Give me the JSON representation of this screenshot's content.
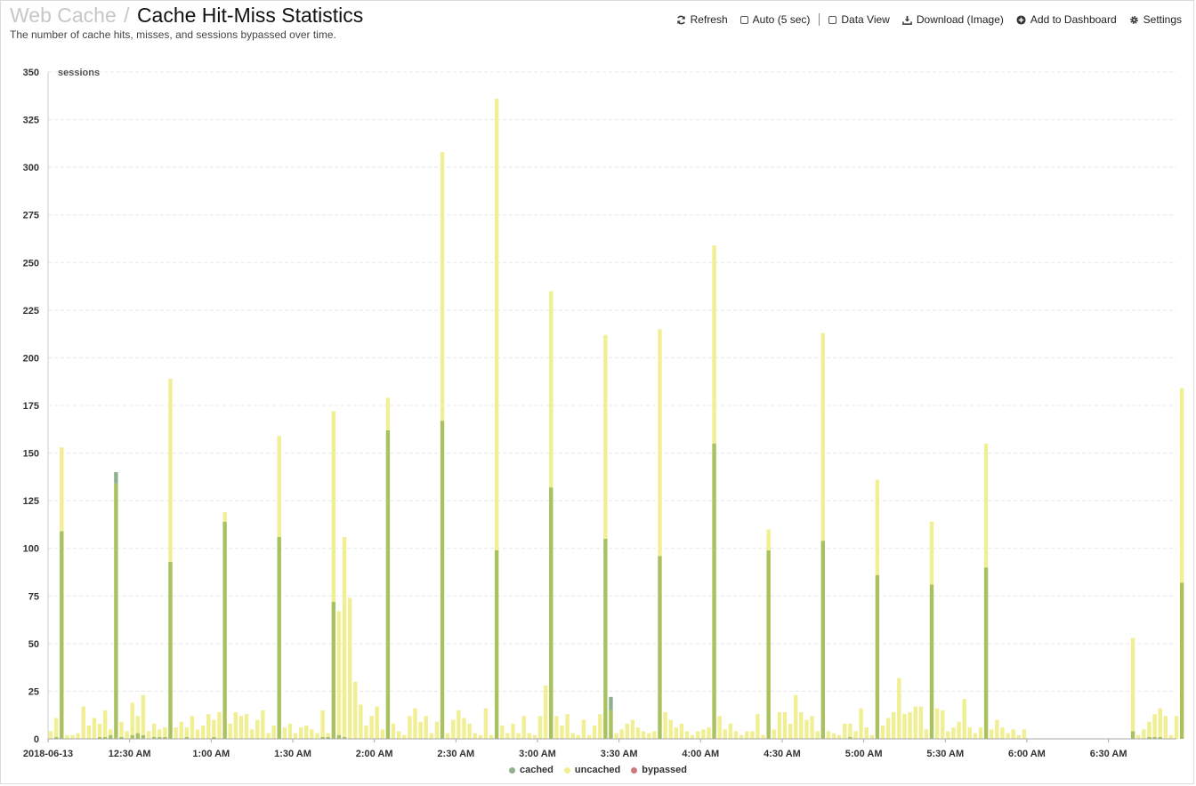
{
  "header": {
    "breadcrumb": "Web Cache",
    "separator": "/",
    "title": "Cache Hit-Miss Statistics",
    "subtitle": "The number of cache hits, misses, and sessions bypassed over time."
  },
  "toolbar": {
    "refresh": "Refresh",
    "auto": "Auto (5 sec)",
    "data_view": "Data View",
    "download": "Download (Image)",
    "add_dashboard": "Add to Dashboard",
    "settings": "Settings"
  },
  "colors": {
    "cached": "#a9c15e",
    "uncached": "#f1ef93",
    "bypassed": "#c97a7a",
    "grid": "#e8e8e8",
    "spike_highlight": "#8fb08f"
  },
  "chart_data": {
    "type": "bar",
    "stacked": true,
    "ylabel": "sessions",
    "ylim": [
      0,
      350
    ],
    "yticks": [
      0,
      25,
      50,
      75,
      100,
      125,
      150,
      175,
      200,
      225,
      250,
      275,
      300,
      325,
      350
    ],
    "grid": true,
    "legend_position": "bottom-center",
    "x_range": [
      "2018-06-13 00:00",
      "2018-06-13 06:53"
    ],
    "x_tick_labels": [
      "2018-06-13",
      "12:30 AM",
      "1:00 AM",
      "1:30 AM",
      "2:00 AM",
      "2:30 AM",
      "3:00 AM",
      "3:30 AM",
      "4:00 AM",
      "4:30 AM",
      "5:00 AM",
      "5:30 AM",
      "6:00 AM",
      "6:30 AM"
    ],
    "interval_minutes": 2,
    "series_names": [
      "cached",
      "uncached",
      "bypassed"
    ],
    "bars": [
      [
        "00:00",
        0,
        4
      ],
      [
        "00:02",
        1,
        10
      ],
      [
        "00:04",
        109,
        44
      ],
      [
        "00:06",
        0,
        2
      ],
      [
        "00:08",
        0,
        2
      ],
      [
        "00:10",
        0,
        3
      ],
      [
        "00:12",
        0,
        17
      ],
      [
        "00:14",
        0,
        7
      ],
      [
        "00:16",
        0,
        11
      ],
      [
        "00:18",
        1,
        7
      ],
      [
        "00:20",
        1,
        14
      ],
      [
        "00:22",
        2,
        3
      ],
      [
        "00:24",
        134,
        6
      ],
      [
        "00:26",
        1,
        8
      ],
      [
        "00:28",
        0,
        4
      ],
      [
        "00:30",
        2,
        17
      ],
      [
        "00:32",
        3,
        9
      ],
      [
        "00:34",
        2,
        21
      ],
      [
        "00:36",
        0,
        4
      ],
      [
        "00:38",
        1,
        7
      ],
      [
        "00:40",
        1,
        4
      ],
      [
        "00:42",
        1,
        5
      ],
      [
        "00:44",
        93,
        96
      ],
      [
        "00:46",
        0,
        6
      ],
      [
        "00:48",
        0,
        9
      ],
      [
        "00:50",
        1,
        5
      ],
      [
        "00:52",
        0,
        12
      ],
      [
        "00:54",
        0,
        5
      ],
      [
        "00:56",
        0,
        7
      ],
      [
        "00:58",
        0,
        13
      ],
      [
        "01:00",
        1,
        9
      ],
      [
        "01:02",
        0,
        14
      ],
      [
        "01:04",
        114,
        5
      ],
      [
        "01:06",
        0,
        8
      ],
      [
        "01:08",
        0,
        14
      ],
      [
        "01:10",
        0,
        12
      ],
      [
        "01:12",
        0,
        13
      ],
      [
        "01:14",
        0,
        5
      ],
      [
        "01:16",
        0,
        10
      ],
      [
        "01:18",
        0,
        15
      ],
      [
        "01:20",
        0,
        3
      ],
      [
        "01:22",
        0,
        7
      ],
      [
        "01:24",
        106,
        53
      ],
      [
        "01:26",
        0,
        6
      ],
      [
        "01:28",
        0,
        8
      ],
      [
        "01:30",
        0,
        3
      ],
      [
        "01:32",
        0,
        6
      ],
      [
        "01:34",
        0,
        7
      ],
      [
        "01:36",
        0,
        5
      ],
      [
        "01:38",
        0,
        3
      ],
      [
        "01:40",
        1,
        14
      ],
      [
        "01:42",
        1,
        2
      ],
      [
        "01:44",
        72,
        100
      ],
      [
        "01:46",
        2,
        65
      ],
      [
        "01:48",
        1,
        105
      ],
      [
        "01:50",
        0,
        74
      ],
      [
        "01:52",
        0,
        30
      ],
      [
        "01:54",
        0,
        18
      ],
      [
        "01:56",
        0,
        7
      ],
      [
        "01:58",
        0,
        12
      ],
      [
        "02:00",
        0,
        17
      ],
      [
        "02:02",
        0,
        5
      ],
      [
        "02:04",
        162,
        17
      ],
      [
        "02:06",
        0,
        8
      ],
      [
        "02:08",
        0,
        4
      ],
      [
        "02:10",
        0,
        2
      ],
      [
        "02:12",
        0,
        12
      ],
      [
        "02:14",
        0,
        16
      ],
      [
        "02:16",
        0,
        9
      ],
      [
        "02:18",
        0,
        12
      ],
      [
        "02:20",
        0,
        3
      ],
      [
        "02:22",
        0,
        9
      ],
      [
        "02:24",
        167,
        141
      ],
      [
        "02:26",
        0,
        3
      ],
      [
        "02:28",
        0,
        10
      ],
      [
        "02:30",
        0,
        15
      ],
      [
        "02:32",
        0,
        11
      ],
      [
        "02:34",
        0,
        8
      ],
      [
        "02:36",
        0,
        3
      ],
      [
        "02:38",
        0,
        2
      ],
      [
        "02:40",
        0,
        16
      ],
      [
        "02:42",
        0,
        2
      ],
      [
        "02:44",
        99,
        237
      ],
      [
        "02:46",
        0,
        7
      ],
      [
        "02:48",
        0,
        3
      ],
      [
        "02:50",
        0,
        8
      ],
      [
        "02:52",
        0,
        3
      ],
      [
        "02:54",
        0,
        12
      ],
      [
        "02:56",
        0,
        3
      ],
      [
        "02:58",
        0,
        2
      ],
      [
        "03:00",
        0,
        12
      ],
      [
        "03:02",
        0,
        28
      ],
      [
        "03:04",
        132,
        103
      ],
      [
        "03:06",
        0,
        12
      ],
      [
        "03:08",
        0,
        7
      ],
      [
        "03:10",
        0,
        13
      ],
      [
        "03:12",
        0,
        3
      ],
      [
        "03:14",
        0,
        2
      ],
      [
        "03:16",
        0,
        10
      ],
      [
        "03:18",
        0,
        2
      ],
      [
        "03:20",
        0,
        7
      ],
      [
        "03:22",
        0,
        13
      ],
      [
        "03:24",
        105,
        107
      ],
      [
        "03:26",
        15,
        7
      ],
      [
        "03:28",
        0,
        3
      ],
      [
        "03:30",
        0,
        5
      ],
      [
        "03:32",
        0,
        8
      ],
      [
        "03:34",
        0,
        10
      ],
      [
        "03:36",
        0,
        6
      ],
      [
        "03:38",
        0,
        4
      ],
      [
        "03:40",
        0,
        3
      ],
      [
        "03:42",
        0,
        4
      ],
      [
        "03:44",
        96,
        119
      ],
      [
        "03:46",
        0,
        14
      ],
      [
        "03:48",
        0,
        10
      ],
      [
        "03:50",
        0,
        6
      ],
      [
        "03:52",
        0,
        8
      ],
      [
        "03:54",
        0,
        4
      ],
      [
        "03:56",
        0,
        2
      ],
      [
        "03:58",
        0,
        4
      ],
      [
        "04:00",
        0,
        5
      ],
      [
        "04:02",
        0,
        6
      ],
      [
        "04:04",
        155,
        104
      ],
      [
        "04:06",
        0,
        12
      ],
      [
        "04:08",
        0,
        5
      ],
      [
        "04:10",
        0,
        8
      ],
      [
        "04:12",
        0,
        4
      ],
      [
        "04:14",
        0,
        2
      ],
      [
        "04:16",
        0,
        4
      ],
      [
        "04:18",
        0,
        4
      ],
      [
        "04:20",
        0,
        13
      ],
      [
        "04:22",
        0,
        2
      ],
      [
        "04:24",
        99,
        11
      ],
      [
        "04:26",
        0,
        5
      ],
      [
        "04:28",
        0,
        14
      ],
      [
        "04:30",
        0,
        14
      ],
      [
        "04:32",
        0,
        8
      ],
      [
        "04:34",
        0,
        23
      ],
      [
        "04:36",
        0,
        14
      ],
      [
        "04:38",
        0,
        10
      ],
      [
        "04:40",
        0,
        12
      ],
      [
        "04:42",
        0,
        4
      ],
      [
        "04:44",
        104,
        109
      ],
      [
        "04:46",
        0,
        4
      ],
      [
        "04:48",
        0,
        3
      ],
      [
        "04:50",
        0,
        2
      ],
      [
        "04:52",
        0,
        8
      ],
      [
        "04:54",
        1,
        7
      ],
      [
        "04:56",
        0,
        4
      ],
      [
        "04:58",
        0,
        16
      ],
      [
        "05:00",
        0,
        6
      ],
      [
        "05:02",
        0,
        2
      ],
      [
        "05:04",
        86,
        50
      ],
      [
        "05:06",
        0,
        7
      ],
      [
        "05:08",
        0,
        11
      ],
      [
        "05:10",
        0,
        14
      ],
      [
        "05:12",
        0,
        32
      ],
      [
        "05:14",
        0,
        13
      ],
      [
        "05:16",
        0,
        14
      ],
      [
        "05:18",
        0,
        17
      ],
      [
        "05:20",
        0,
        17
      ],
      [
        "05:22",
        0,
        5
      ],
      [
        "05:24",
        81,
        33
      ],
      [
        "05:26",
        0,
        16
      ],
      [
        "05:28",
        0,
        15
      ],
      [
        "05:30",
        0,
        4
      ],
      [
        "05:32",
        0,
        6
      ],
      [
        "05:34",
        0,
        9
      ],
      [
        "05:36",
        0,
        21
      ],
      [
        "05:38",
        0,
        6
      ],
      [
        "05:40",
        0,
        3
      ],
      [
        "05:42",
        0,
        6
      ],
      [
        "05:44",
        90,
        65
      ],
      [
        "05:46",
        0,
        5
      ],
      [
        "05:48",
        0,
        10
      ],
      [
        "05:50",
        0,
        6
      ],
      [
        "05:52",
        0,
        3
      ],
      [
        "05:54",
        0,
        5
      ],
      [
        "05:56",
        0,
        2
      ],
      [
        "05:58",
        0,
        5
      ],
      [
        "06:38",
        4,
        49
      ],
      [
        "06:40",
        0,
        2
      ],
      [
        "06:42",
        0,
        5
      ],
      [
        "06:44",
        1,
        8
      ],
      [
        "06:46",
        1,
        12
      ],
      [
        "06:48",
        1,
        15
      ],
      [
        "06:50",
        0,
        12
      ],
      [
        "06:52",
        0,
        2
      ],
      [
        "06:54",
        0,
        12
      ],
      [
        "06:56",
        82,
        102
      ]
    ],
    "highlight_bar": [
      "00:24",
      "03:26"
    ]
  }
}
